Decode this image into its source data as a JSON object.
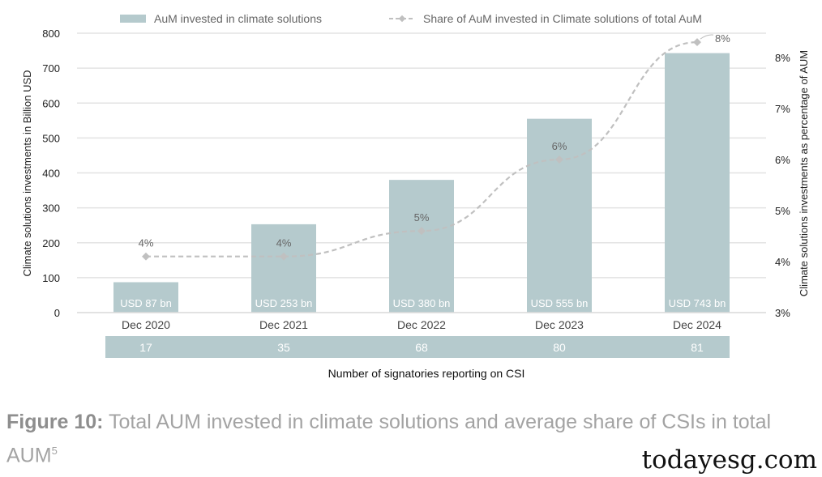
{
  "chart_data": {
    "type": "bar",
    "categories": [
      "Dec 2020",
      "Dec 2021",
      "Dec 2022",
      "Dec 2023",
      "Dec 2024"
    ],
    "series": [
      {
        "name": "AuM invested in climate solutions",
        "type": "bar",
        "axis": "left",
        "values": [
          87,
          253,
          380,
          555,
          743
        ],
        "data_labels": [
          "USD 87 bn",
          "USD 253 bn",
          "USD 380 bn",
          "USD 555 bn",
          "USD 743 bn"
        ],
        "color": "#b5cacd"
      },
      {
        "name": "Share of AuM invested in Climate solutions of total AuM",
        "type": "line",
        "axis": "right",
        "style": "dashed",
        "values": [
          4.1,
          4.1,
          4.6,
          6.0,
          8.3
        ],
        "data_labels": [
          "4%",
          "4%",
          "5%",
          "6%",
          "8%"
        ],
        "color": "#c0c0c0"
      }
    ],
    "ylabel": "Climate solutions investments in Billion USD",
    "ylim": [
      0,
      800
    ],
    "yticks": [
      "0",
      "100",
      "200",
      "300",
      "400",
      "500",
      "600",
      "700",
      "800"
    ],
    "y2label": "Climate solutions investments as percentage of AUM",
    "y2lim": [
      3,
      8
    ],
    "y2ticks": [
      "3%",
      "4%",
      "5%",
      "6%",
      "7%",
      "8%"
    ],
    "xlabel": "Number of signatories reporting on CSI",
    "signatories": [
      "17",
      "35",
      "68",
      "80",
      "81"
    ],
    "grid": true,
    "legend": "top"
  },
  "caption": {
    "label": "Figure 10:",
    "text": " Total AUM invested in climate solutions and average share of CSIs in total AUM",
    "footnote": "5"
  },
  "watermark": "todayesg.com"
}
